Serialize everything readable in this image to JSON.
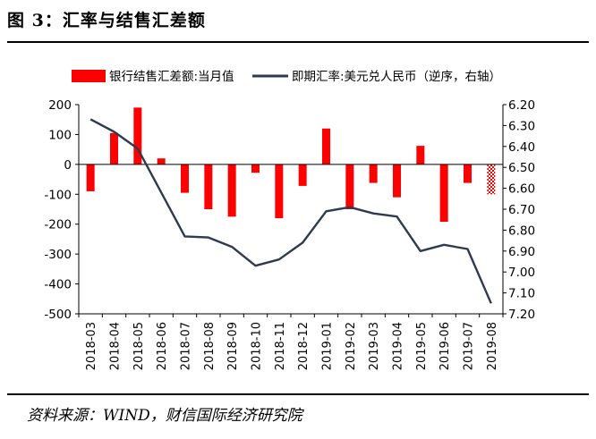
{
  "figure": {
    "title": "图 3：汇率与结售汇差额",
    "source": "资料来源：WIND，财信国际经济研究院"
  },
  "legend": [
    {
      "name": "银行结售汇差额:当月值",
      "color": "#FF0000",
      "kind": "bar"
    },
    {
      "name": "即期汇率:美元兑人民币（逆序，右轴）",
      "color": "#2E3A4F",
      "kind": "line"
    }
  ],
  "chart_data": {
    "type": "bar",
    "categories": [
      "2018-03",
      "2018-04",
      "2018-05",
      "2018-06",
      "2018-07",
      "2018-08",
      "2018-09",
      "2018-10",
      "2018-11",
      "2018-12",
      "2019-01",
      "2019-02",
      "2019-03",
      "2019-04",
      "2019-05",
      "2019-06",
      "2019-07",
      "2019-08"
    ],
    "series": [
      {
        "name": "银行结售汇差额:当月值",
        "type": "bar",
        "axis": "left",
        "values": [
          -90,
          105,
          190,
          20,
          -95,
          -150,
          -175,
          -28,
          -180,
          -72,
          120,
          -150,
          -62,
          -110,
          62,
          -192,
          -62,
          -100
        ],
        "hatched_last": true
      },
      {
        "name": "即期汇率:美元兑人民币（逆序，右轴）",
        "type": "line",
        "axis": "right",
        "values": [
          6.27,
          6.33,
          6.41,
          6.62,
          6.83,
          6.835,
          6.88,
          6.97,
          6.94,
          6.86,
          6.71,
          6.69,
          6.72,
          6.735,
          6.9,
          6.87,
          6.89,
          7.15
        ]
      }
    ],
    "y_left": {
      "min": -500,
      "max": 200,
      "ticks": [
        "200",
        "100",
        "0",
        "-100",
        "-200",
        "-300",
        "-400",
        "-500"
      ]
    },
    "y_right": {
      "min": 6.2,
      "max": 7.2,
      "reversed": true,
      "ticks": [
        "6.20",
        "6.30",
        "6.40",
        "6.50",
        "6.60",
        "6.70",
        "6.80",
        "6.90",
        "7.00",
        "7.10",
        "7.20"
      ]
    },
    "grid": false,
    "legend_position": "top"
  }
}
